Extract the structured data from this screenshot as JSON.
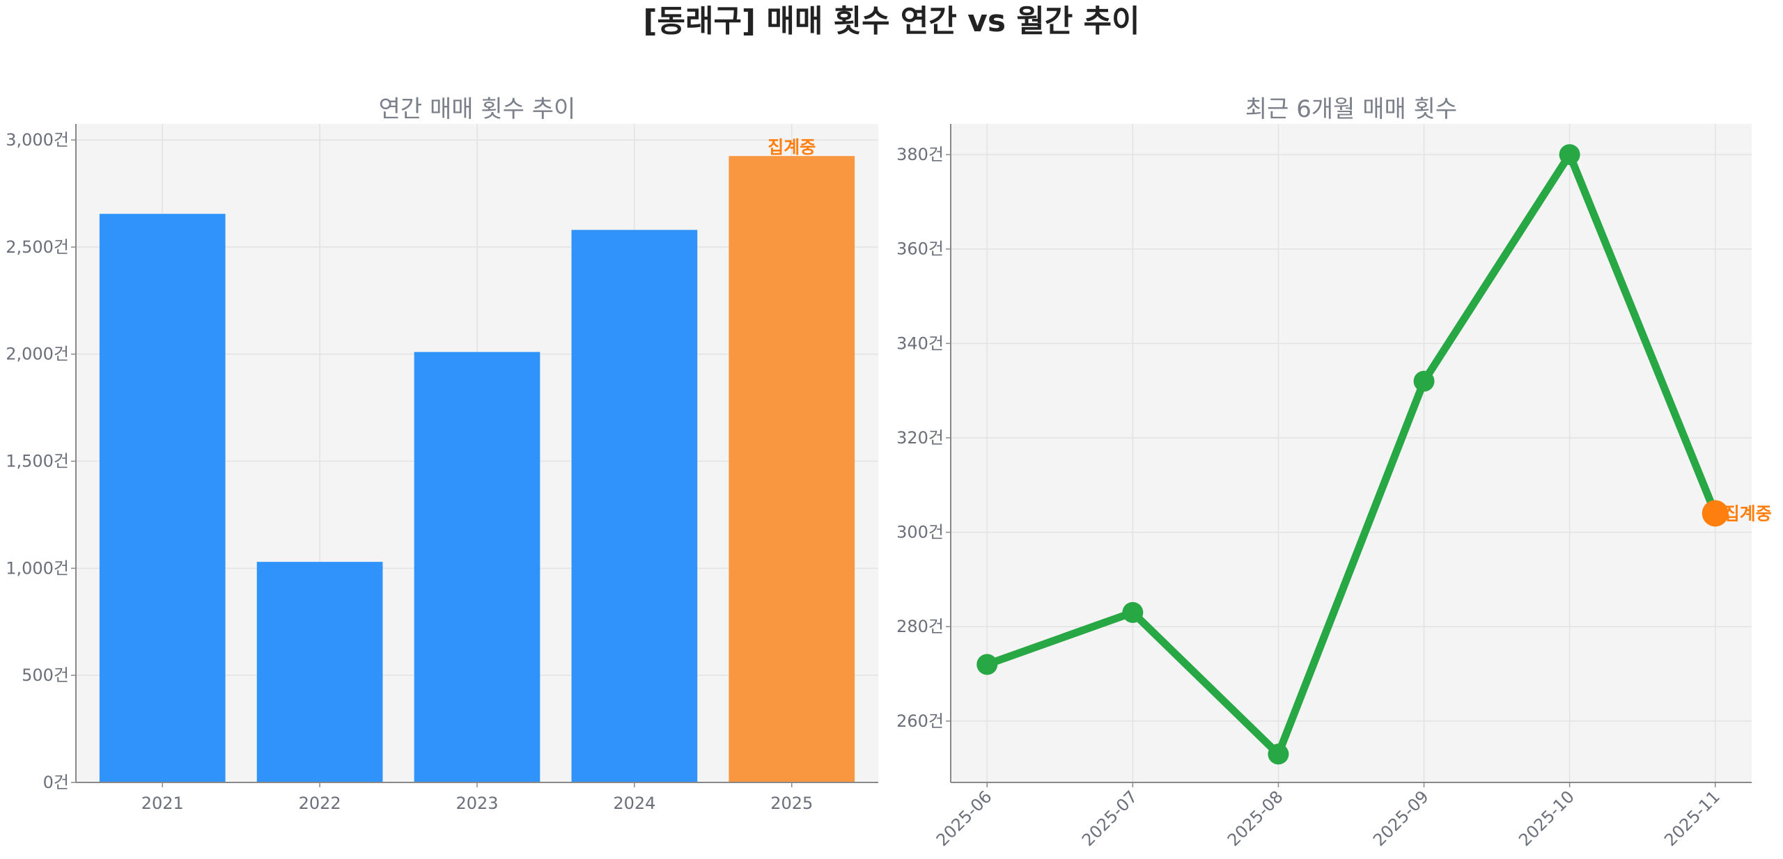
{
  "title": "[동래구] 매매 횟수 연간 vs 월간 추이",
  "colors": {
    "bar": "#3093fb",
    "bar_highlight": "#f99740",
    "line": "#28a745",
    "point_highlight": "#ff7f0e",
    "annotation": "#ff7f0e",
    "plot_bg": "#f4f4f4"
  },
  "chart_data": [
    {
      "type": "bar",
      "title": "연간 매매 횟수 추이",
      "categories": [
        "2021",
        "2022",
        "2023",
        "2024",
        "2025"
      ],
      "values": [
        2655,
        1030,
        2010,
        2580,
        2925
      ],
      "highlight_index": 4,
      "annotation": "집계중",
      "ylim": [
        0,
        3075
      ],
      "yticks": [
        0,
        500,
        1000,
        1500,
        2000,
        2500,
        3000
      ],
      "ytick_labels": [
        "0건",
        "500건",
        "1,000건",
        "1,500건",
        "2,000건",
        "2,500건",
        "3,000건"
      ],
      "grid": true
    },
    {
      "type": "line",
      "title": "최근 6개월 매매 횟수",
      "x": [
        "2025-06",
        "2025-07",
        "2025-08",
        "2025-09",
        "2025-10",
        "2025-11"
      ],
      "values": [
        272,
        283,
        253,
        332,
        380,
        304
      ],
      "highlight_index": 5,
      "annotation": "집계중",
      "ylim": [
        247,
        386.5
      ],
      "yticks": [
        260,
        280,
        300,
        320,
        340,
        360,
        380
      ],
      "ytick_labels": [
        "260건",
        "280건",
        "300건",
        "320건",
        "340건",
        "360건",
        "380건"
      ],
      "grid": true
    }
  ]
}
